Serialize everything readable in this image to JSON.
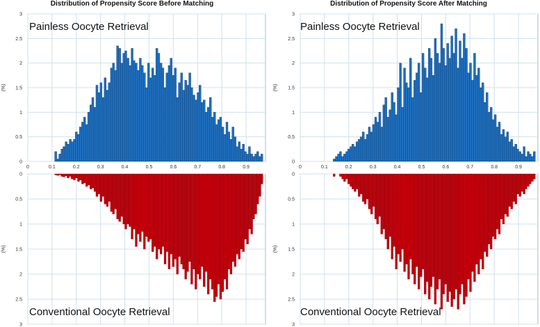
{
  "chart_data": [
    {
      "type": "bar",
      "title": "Distribution of Propensity  Score Before Matching",
      "ylabel": "(%)",
      "x_ticks": [
        "0",
        "0.1",
        "0.2",
        "0.3",
        "0.4",
        "0.5",
        "0.6",
        "0.7",
        "0.8",
        "0.9"
      ],
      "top_y_ticks": [
        "0",
        "0.5",
        "1",
        "1.5",
        "2",
        "2.5",
        "3"
      ],
      "bottom_y_ticks": [
        "0",
        "0.5",
        "1",
        "1.5",
        "2",
        "2.5",
        "3"
      ],
      "xlim": [
        0,
        0.98
      ],
      "ylim_top": [
        0,
        3
      ],
      "ylim_bottom": [
        0,
        3
      ],
      "grid": true,
      "bin_width": 0.0085,
      "series": [
        {
          "name": "Painless Oocyte Retrieval",
          "direction": "up",
          "color": "#1f6fbf",
          "x": [
            0.115,
            0.124,
            0.132,
            0.141,
            0.149,
            0.158,
            0.166,
            0.175,
            0.183,
            0.192,
            0.2,
            0.209,
            0.217,
            0.226,
            0.234,
            0.243,
            0.251,
            0.26,
            0.268,
            0.277,
            0.285,
            0.294,
            0.302,
            0.311,
            0.319,
            0.328,
            0.336,
            0.345,
            0.353,
            0.362,
            0.37,
            0.379,
            0.387,
            0.396,
            0.404,
            0.413,
            0.421,
            0.43,
            0.438,
            0.447,
            0.455,
            0.464,
            0.472,
            0.481,
            0.489,
            0.498,
            0.506,
            0.515,
            0.523,
            0.532,
            0.54,
            0.549,
            0.557,
            0.566,
            0.574,
            0.583,
            0.591,
            0.6,
            0.608,
            0.617,
            0.625,
            0.634,
            0.642,
            0.651,
            0.659,
            0.668,
            0.676,
            0.685,
            0.693,
            0.702,
            0.71,
            0.719,
            0.727,
            0.736,
            0.744,
            0.753,
            0.761,
            0.77,
            0.778,
            0.787,
            0.795,
            0.804,
            0.812,
            0.821,
            0.829,
            0.838,
            0.846,
            0.855,
            0.863,
            0.872,
            0.88,
            0.889,
            0.897,
            0.906,
            0.914,
            0.923,
            0.931,
            0.94,
            0.948,
            0.957,
            0.965
          ],
          "values": [
            0.2,
            0.05,
            0.15,
            0.25,
            0.3,
            0.4,
            0.35,
            0.45,
            0.4,
            0.45,
            0.6,
            0.55,
            0.7,
            0.8,
            0.9,
            0.75,
            1.0,
            1.15,
            1.3,
            1.1,
            1.55,
            1.4,
            1.6,
            1.3,
            1.7,
            1.45,
            1.6,
            1.9,
            2.0,
            1.85,
            2.35,
            2.3,
            2.0,
            2.2,
            2.25,
            2.1,
            1.95,
            2.3,
            2.05,
            2.0,
            1.85,
            2.1,
            1.95,
            1.8,
            1.5,
            2.0,
            1.7,
            1.9,
            1.75,
            2.3,
            2.2,
            2.0,
            1.9,
            1.5,
            1.8,
            1.95,
            2.1,
            1.75,
            1.9,
            1.3,
            1.6,
            1.8,
            1.45,
            1.65,
            1.55,
            1.8,
            1.5,
            1.35,
            1.25,
            1.4,
            1.55,
            1.2,
            1.25,
            1.0,
            1.1,
            1.3,
            0.9,
            1.0,
            0.75,
            0.85,
            0.9,
            0.7,
            0.55,
            0.8,
            0.6,
            0.45,
            0.7,
            0.5,
            0.3,
            0.4,
            0.25,
            0.35,
            0.2,
            0.15,
            0.3,
            0.15,
            0.1,
            0.15,
            0.2,
            0.1,
            0.15
          ]
        },
        {
          "name": "Conventional Oocyte Retrieval",
          "direction": "down",
          "color": "#c0000b",
          "x": [
            0.115,
            0.124,
            0.132,
            0.141,
            0.149,
            0.158,
            0.166,
            0.175,
            0.183,
            0.192,
            0.2,
            0.209,
            0.217,
            0.226,
            0.234,
            0.243,
            0.251,
            0.26,
            0.268,
            0.277,
            0.285,
            0.294,
            0.302,
            0.311,
            0.319,
            0.328,
            0.336,
            0.345,
            0.353,
            0.362,
            0.37,
            0.379,
            0.387,
            0.396,
            0.404,
            0.413,
            0.421,
            0.43,
            0.438,
            0.447,
            0.455,
            0.464,
            0.472,
            0.481,
            0.489,
            0.498,
            0.506,
            0.515,
            0.523,
            0.532,
            0.54,
            0.549,
            0.557,
            0.566,
            0.574,
            0.583,
            0.591,
            0.6,
            0.608,
            0.617,
            0.625,
            0.634,
            0.642,
            0.651,
            0.659,
            0.668,
            0.676,
            0.685,
            0.693,
            0.702,
            0.71,
            0.719,
            0.727,
            0.736,
            0.744,
            0.753,
            0.761,
            0.77,
            0.778,
            0.787,
            0.795,
            0.804,
            0.812,
            0.821,
            0.829,
            0.838,
            0.846,
            0.855,
            0.863,
            0.872,
            0.88,
            0.889,
            0.897,
            0.906,
            0.914,
            0.923,
            0.931,
            0.94,
            0.948,
            0.957,
            0.965
          ],
          "values": [
            0.02,
            0.03,
            0.02,
            0.05,
            0.06,
            0.04,
            0.08,
            0.05,
            0.1,
            0.12,
            0.08,
            0.15,
            0.12,
            0.2,
            0.18,
            0.25,
            0.22,
            0.3,
            0.28,
            0.35,
            0.45,
            0.4,
            0.55,
            0.45,
            0.6,
            0.65,
            0.55,
            0.75,
            0.8,
            0.7,
            0.9,
            0.95,
            0.85,
            1.0,
            1.1,
            1.0,
            1.05,
            1.3,
            1.1,
            1.45,
            1.2,
            1.35,
            1.15,
            1.5,
            1.25,
            1.35,
            1.3,
            1.55,
            1.45,
            1.7,
            1.5,
            1.6,
            1.45,
            1.8,
            1.55,
            1.9,
            1.6,
            1.85,
            1.7,
            2.0,
            1.65,
            1.8,
            1.9,
            2.1,
            1.95,
            1.75,
            2.2,
            1.9,
            2.3,
            2.0,
            2.1,
            1.85,
            2.25,
            1.95,
            2.4,
            2.1,
            2.3,
            2.55,
            2.45,
            2.2,
            2.5,
            2.35,
            2.1,
            2.3,
            1.9,
            2.0,
            1.75,
            1.85,
            1.6,
            1.7,
            1.5,
            1.55,
            1.3,
            1.4,
            1.1,
            1.2,
            0.9,
            0.8,
            0.6,
            0.45,
            0.2
          ]
        }
      ]
    },
    {
      "type": "bar",
      "title": "Distribution of Propensity  Score After Matching",
      "ylabel": "(%)",
      "x_ticks": [
        "0",
        "0.1",
        "0.2",
        "0.3",
        "0.4",
        "0.5",
        "0.6",
        "0.7",
        "0.8",
        "0.9"
      ],
      "top_y_ticks": [
        "0",
        "0.5",
        "1",
        "1.5",
        "2",
        "2.5",
        "3"
      ],
      "bottom_y_ticks": [
        "0",
        "0.5",
        "1",
        "1.5",
        "2",
        "2.5",
        "3"
      ],
      "xlim": [
        0,
        0.98
      ],
      "ylim_top": [
        0,
        3
      ],
      "ylim_bottom": [
        0,
        3
      ],
      "grid": true,
      "bin_width": 0.0085,
      "series": [
        {
          "name": "Painless Oocyte Retrieval",
          "direction": "up",
          "color": "#1f6fbf",
          "x": [
            0.14,
            0.149,
            0.158,
            0.166,
            0.175,
            0.183,
            0.192,
            0.2,
            0.209,
            0.217,
            0.226,
            0.234,
            0.243,
            0.251,
            0.26,
            0.268,
            0.277,
            0.285,
            0.294,
            0.302,
            0.311,
            0.319,
            0.328,
            0.336,
            0.345,
            0.353,
            0.362,
            0.37,
            0.379,
            0.387,
            0.396,
            0.404,
            0.413,
            0.421,
            0.43,
            0.438,
            0.447,
            0.455,
            0.464,
            0.472,
            0.481,
            0.489,
            0.498,
            0.506,
            0.515,
            0.523,
            0.532,
            0.54,
            0.549,
            0.557,
            0.566,
            0.574,
            0.583,
            0.591,
            0.6,
            0.608,
            0.617,
            0.625,
            0.634,
            0.642,
            0.651,
            0.659,
            0.668,
            0.676,
            0.685,
            0.693,
            0.702,
            0.71,
            0.719,
            0.727,
            0.736,
            0.744,
            0.753,
            0.761,
            0.77,
            0.778,
            0.787,
            0.795,
            0.804,
            0.812,
            0.821,
            0.829,
            0.838,
            0.846,
            0.855,
            0.863,
            0.872,
            0.88,
            0.889,
            0.897,
            0.906,
            0.914,
            0.923,
            0.931,
            0.94,
            0.948,
            0.957,
            0.965
          ],
          "values": [
            0.05,
            0.1,
            0.15,
            0.2,
            0.1,
            0.15,
            0.2,
            0.25,
            0.3,
            0.35,
            0.3,
            0.4,
            0.45,
            0.5,
            0.6,
            0.45,
            0.55,
            0.7,
            0.6,
            0.75,
            0.9,
            0.8,
            1.0,
            0.7,
            1.15,
            1.3,
            0.9,
            1.05,
            1.4,
            1.2,
            0.95,
            1.5,
            2.0,
            1.1,
            1.9,
            1.6,
            1.5,
            2.1,
            1.3,
            1.65,
            1.8,
            2.0,
            1.4,
            2.2,
            1.9,
            1.7,
            2.3,
            2.1,
            1.75,
            2.5,
            2.2,
            2.0,
            2.8,
            2.3,
            1.95,
            2.4,
            2.1,
            2.55,
            2.2,
            2.7,
            1.9,
            2.45,
            2.1,
            2.6,
            2.3,
            1.8,
            2.0,
            1.65,
            2.2,
            1.75,
            1.9,
            1.5,
            1.6,
            1.2,
            1.4,
            1.0,
            1.1,
            0.85,
            0.95,
            0.7,
            0.8,
            0.55,
            0.65,
            0.5,
            0.6,
            0.4,
            0.45,
            0.3,
            0.35,
            0.25,
            0.2,
            0.15,
            0.3,
            0.1,
            0.2,
            0.15,
            0.1,
            0.2
          ]
        },
        {
          "name": "Conventional Oocyte Retrieval",
          "direction": "down",
          "color": "#c0000b",
          "x": [
            0.14,
            0.149,
            0.158,
            0.166,
            0.175,
            0.183,
            0.192,
            0.2,
            0.209,
            0.217,
            0.226,
            0.234,
            0.243,
            0.251,
            0.26,
            0.268,
            0.277,
            0.285,
            0.294,
            0.302,
            0.311,
            0.319,
            0.328,
            0.336,
            0.345,
            0.353,
            0.362,
            0.37,
            0.379,
            0.387,
            0.396,
            0.404,
            0.413,
            0.421,
            0.43,
            0.438,
            0.447,
            0.455,
            0.464,
            0.472,
            0.481,
            0.489,
            0.498,
            0.506,
            0.515,
            0.523,
            0.532,
            0.54,
            0.549,
            0.557,
            0.566,
            0.574,
            0.583,
            0.591,
            0.6,
            0.608,
            0.617,
            0.625,
            0.634,
            0.642,
            0.651,
            0.659,
            0.668,
            0.676,
            0.685,
            0.693,
            0.702,
            0.71,
            0.719,
            0.727,
            0.736,
            0.744,
            0.753,
            0.761,
            0.77,
            0.778,
            0.787,
            0.795,
            0.804,
            0.812,
            0.821,
            0.829,
            0.838,
            0.846,
            0.855,
            0.863,
            0.872,
            0.88,
            0.889,
            0.897,
            0.906,
            0.914,
            0.923,
            0.931,
            0.94,
            0.948,
            0.957,
            0.965
          ],
          "values": [
            0.05,
            0.0,
            0.0,
            0.05,
            0.1,
            0.15,
            0.1,
            0.2,
            0.25,
            0.3,
            0.35,
            0.3,
            0.45,
            0.4,
            0.55,
            0.6,
            0.5,
            0.7,
            0.8,
            0.65,
            0.9,
            1.0,
            0.85,
            1.2,
            1.1,
            1.3,
            1.5,
            1.25,
            1.7,
            1.45,
            1.9,
            1.6,
            1.75,
            1.5,
            1.95,
            1.8,
            2.1,
            1.7,
            2.0,
            2.2,
            1.85,
            2.3,
            2.05,
            1.9,
            2.4,
            2.15,
            2.5,
            2.25,
            2.05,
            2.6,
            2.3,
            2.1,
            2.7,
            2.4,
            2.2,
            2.55,
            2.35,
            2.65,
            2.5,
            2.3,
            2.7,
            2.4,
            2.2,
            2.6,
            2.45,
            2.1,
            2.35,
            1.95,
            2.15,
            1.8,
            2.0,
            1.7,
            1.9,
            1.55,
            1.65,
            1.4,
            1.5,
            1.25,
            1.3,
            1.1,
            1.2,
            0.9,
            1.0,
            0.8,
            0.85,
            0.65,
            0.7,
            0.55,
            0.6,
            0.4,
            0.45,
            0.35,
            0.4,
            0.3,
            0.25,
            0.2,
            0.15,
            0.1
          ]
        }
      ]
    }
  ]
}
